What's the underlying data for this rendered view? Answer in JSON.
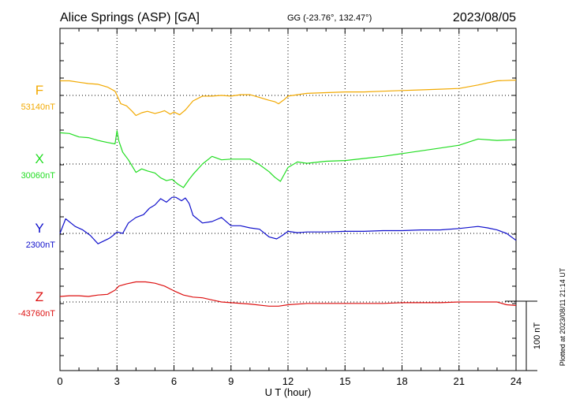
{
  "header": {
    "station": "Alice Springs (ASP)  [GA]",
    "coords": "GG (-23.76°, 132.47°)",
    "date": "2023/08/05"
  },
  "side_note": "Plotted at 2023/08/11 21:14 UT",
  "scale_bar_label": "100 nT",
  "colors": {
    "F": "#f2a900",
    "X": "#22dd22",
    "Y": "#1010cc",
    "Z": "#dd1111",
    "axis": "#000000",
    "grid": "#000000"
  },
  "chart_data": {
    "type": "line",
    "title": "Alice Springs (ASP)  [GA]",
    "xlabel": "U T (hour)",
    "xlim": [
      0,
      24
    ],
    "xticks": [
      0,
      3,
      6,
      9,
      12,
      15,
      18,
      21,
      24
    ],
    "grid": true,
    "scale_nT_per_bar": 100,
    "series": [
      {
        "name": "F",
        "baseline_label": "53140nT",
        "baseline_nT": 53140,
        "x": [
          0,
          0.5,
          1,
          1.5,
          2,
          2.5,
          2.9,
          3.0,
          3.2,
          3.5,
          3.8,
          4.0,
          4.3,
          4.6,
          5.0,
          5.3,
          5.5,
          5.8,
          6.0,
          6.3,
          6.6,
          7.0,
          7.5,
          8.0,
          8.5,
          9.0,
          9.5,
          10.0,
          10.5,
          11.0,
          11.3,
          11.5,
          11.8,
          12.0,
          12.5,
          13.0,
          14,
          15,
          16,
          17,
          18,
          19,
          20,
          21,
          22,
          23,
          24
        ],
        "values": [
          53161,
          53161,
          53159,
          53157,
          53156,
          53152,
          53146,
          53140,
          53128,
          53125,
          53117,
          53111,
          53115,
          53117,
          53114,
          53116,
          53118,
          53113,
          53116,
          53112,
          53119,
          53132,
          53139,
          53139,
          53140,
          53139,
          53141,
          53141,
          53137,
          53133,
          53131,
          53128,
          53134,
          53139,
          53141,
          53143,
          53144,
          53145,
          53145,
          53146,
          53147,
          53148,
          53149,
          53150,
          53155,
          53161,
          53162
        ]
      },
      {
        "name": "X",
        "baseline_label": "30060nT",
        "baseline_nT": 30060,
        "x": [
          0,
          0.5,
          1,
          1.5,
          2,
          2.5,
          2.9,
          3.0,
          3.1,
          3.3,
          3.6,
          4.0,
          4.3,
          4.6,
          5.0,
          5.3,
          5.6,
          5.9,
          6.2,
          6.5,
          6.8,
          7.0,
          7.5,
          8.0,
          8.5,
          9.0,
          9.5,
          10.0,
          10.5,
          11.0,
          11.3,
          11.6,
          12.0,
          12.5,
          13.0,
          14,
          15,
          16,
          17,
          18,
          19,
          20,
          21,
          22,
          23,
          24
        ],
        "values": [
          30105,
          30104,
          30099,
          30098,
          30094,
          30091,
          30089,
          30108,
          30093,
          30077,
          30066,
          30048,
          30053,
          30050,
          30047,
          30040,
          30036,
          30038,
          30031,
          30026,
          30038,
          30045,
          30060,
          30071,
          30066,
          30067,
          30067,
          30067,
          30059,
          30049,
          30041,
          30035,
          30055,
          30063,
          30061,
          30064,
          30065,
          30068,
          30071,
          30075,
          30079,
          30083,
          30087,
          30096,
          30094,
          30095
        ]
      },
      {
        "name": "Y",
        "baseline_label": "2300nT",
        "baseline_nT": 2300,
        "x": [
          0,
          0.3,
          0.8,
          1.2,
          1.6,
          2.0,
          2.3,
          2.6,
          2.8,
          3.0,
          3.3,
          3.6,
          4.0,
          4.4,
          4.7,
          5.0,
          5.3,
          5.6,
          5.9,
          6.1,
          6.4,
          6.6,
          6.8,
          7.0,
          7.5,
          8.0,
          8.5,
          9.0,
          9.5,
          10.0,
          10.5,
          11.0,
          11.4,
          11.7,
          12.0,
          12.5,
          13.0,
          14,
          15,
          16,
          17,
          18,
          19,
          20,
          21,
          22,
          22.5,
          23,
          23.5,
          24
        ],
        "values": [
          2300,
          2321,
          2310,
          2305,
          2297,
          2285,
          2289,
          2293,
          2297,
          2302,
          2300,
          2315,
          2323,
          2327,
          2336,
          2341,
          2350,
          2345,
          2352,
          2352,
          2347,
          2351,
          2343,
          2326,
          2315,
          2317,
          2323,
          2311,
          2311,
          2308,
          2306,
          2295,
          2292,
          2297,
          2303,
          2301,
          2302,
          2302,
          2303,
          2303,
          2304,
          2304,
          2305,
          2305,
          2307,
          2310,
          2308,
          2305,
          2300,
          2290
        ]
      },
      {
        "name": "Z",
        "baseline_label": "-43760nT",
        "baseline_nT": -43760,
        "x": [
          0,
          0.5,
          1,
          1.5,
          2,
          2.5,
          2.9,
          3.1,
          3.5,
          4.0,
          4.5,
          5.0,
          5.5,
          6.0,
          6.5,
          7.0,
          7.5,
          8.0,
          8.5,
          9.0,
          10.0,
          11.0,
          11.5,
          12.0,
          13.0,
          14,
          15,
          16,
          17,
          18,
          19,
          20,
          21,
          22,
          23,
          23.5,
          24
        ],
        "values": [
          -43752,
          -43751,
          -43751,
          -43752,
          -43750,
          -43749,
          -43743,
          -43737,
          -43734,
          -43731,
          -43731,
          -43733,
          -43737,
          -43744,
          -43750,
          -43753,
          -43754,
          -43757,
          -43760,
          -43761,
          -43763,
          -43766,
          -43766,
          -43764,
          -43762,
          -43762,
          -43762,
          -43762,
          -43762,
          -43761,
          -43761,
          -43761,
          -43760,
          -43760,
          -43760,
          -43764,
          -43765
        ]
      }
    ]
  }
}
